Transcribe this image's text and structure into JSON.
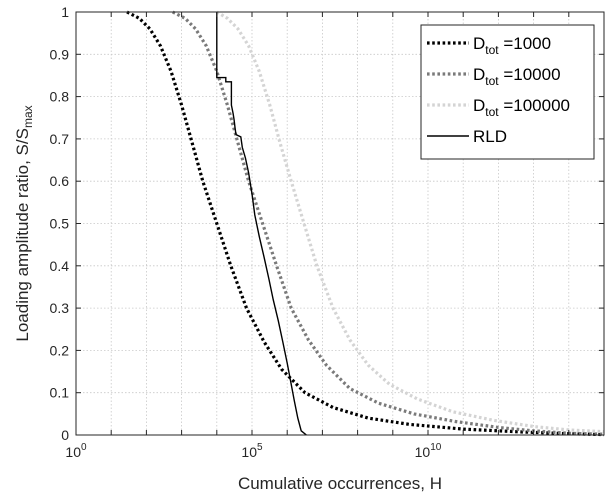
{
  "chart_data": {
    "type": "line",
    "xlabel": "Cumulative occurrences, H",
    "ylabel": {
      "main": "Loading amplitude ratio, S/S",
      "sub": "max"
    },
    "xscale": "log",
    "xlim": [
      1,
      1000000000000000
    ],
    "ylim": [
      0,
      1
    ],
    "grid": true,
    "legend_position": "top-right",
    "x_ticks": [
      {
        "value": 1,
        "base": "10",
        "exp": "0"
      },
      {
        "value": 100000,
        "base": "10",
        "exp": "5"
      },
      {
        "value": 10000000000,
        "base": "10",
        "exp": "10"
      }
    ],
    "y_ticks": [
      "0",
      "0.1",
      "0.2",
      "0.3",
      "0.4",
      "0.5",
      "0.6",
      "0.7",
      "0.8",
      "0.9",
      "1"
    ],
    "series": [
      {
        "name": {
          "main": "D",
          "sub": "tot",
          "suffix": " =1000"
        },
        "style": "dotted",
        "color": "#000000",
        "points": [
          [
            28.2,
            1.0
          ],
          [
            63.0,
            0.985
          ],
          [
            126.0,
            0.96
          ],
          [
            250.0,
            0.92
          ],
          [
            500.0,
            0.86
          ],
          [
            1000.0,
            0.78
          ],
          [
            2000.0,
            0.69
          ],
          [
            4000.0,
            0.6
          ],
          [
            10000.0,
            0.5
          ],
          [
            25000.0,
            0.4
          ],
          [
            70000.0,
            0.3
          ],
          [
            220000.0,
            0.22
          ],
          [
            700000.0,
            0.155
          ],
          [
            3200000.0,
            0.1
          ],
          [
            20000000.0,
            0.065
          ],
          [
            200000000.0,
            0.04
          ],
          [
            3000000000.0,
            0.025
          ],
          [
            100000000000.0,
            0.014
          ],
          [
            5000000000000.0,
            0.007
          ],
          [
            100000000000000.0,
            0.003
          ],
          [
            1000000000000000.0,
            0.001
          ]
        ]
      },
      {
        "name": {
          "main": "D",
          "sub": "tot",
          "suffix": " =10000"
        },
        "style": "dotted",
        "color": "#7a7a7a",
        "points": [
          [
            560.0,
            1.0
          ],
          [
            1260.0,
            0.985
          ],
          [
            2500.0,
            0.96
          ],
          [
            5000.0,
            0.92
          ],
          [
            10000.0,
            0.86
          ],
          [
            20000.0,
            0.78
          ],
          [
            40000.0,
            0.69
          ],
          [
            80000.0,
            0.6
          ],
          [
            200000.0,
            0.5
          ],
          [
            500000.0,
            0.4
          ],
          [
            1300000.0,
            0.3
          ],
          [
            4000000.0,
            0.225
          ],
          [
            13000000.0,
            0.165
          ],
          [
            60000000.0,
            0.11
          ],
          [
            400000000.0,
            0.075
          ],
          [
            4000000000.0,
            0.05
          ],
          [
            60000000000.0,
            0.032
          ],
          [
            1000000000000.0,
            0.018
          ],
          [
            10000000000000.0,
            0.01
          ],
          [
            100000000000000.0,
            0.004
          ],
          [
            1000000000000000.0,
            0.002
          ]
        ]
      },
      {
        "name": {
          "main": "D",
          "sub": "tot",
          "suffix": " =100000"
        },
        "style": "dotted",
        "color": "#d4d4d4",
        "points": [
          [
            10000.0,
            1.0
          ],
          [
            20000.0,
            0.985
          ],
          [
            40000.0,
            0.96
          ],
          [
            80000.0,
            0.92
          ],
          [
            160000.0,
            0.86
          ],
          [
            320000.0,
            0.78
          ],
          [
            630000.0,
            0.69
          ],
          [
            1300000.0,
            0.6
          ],
          [
            3000000.0,
            0.5
          ],
          [
            7000000.0,
            0.4
          ],
          [
            20000000.0,
            0.3
          ],
          [
            60000000.0,
            0.225
          ],
          [
            200000000.0,
            0.165
          ],
          [
            800000000.0,
            0.12
          ],
          [
            5000000000.0,
            0.085
          ],
          [
            50000000000.0,
            0.055
          ],
          [
            700000000000.0,
            0.035
          ],
          [
            10000000000000.0,
            0.02
          ],
          [
            100000000000000.0,
            0.012
          ],
          [
            1000000000000000.0,
            0.008
          ]
        ]
      },
      {
        "name": {
          "main": "RLD",
          "sub": "",
          "suffix": ""
        },
        "style": "solid",
        "color": "#000000",
        "points": [
          [
            10000.0,
            1.0
          ],
          [
            10000.0,
            0.845
          ],
          [
            18000.0,
            0.845
          ],
          [
            18000.0,
            0.835
          ],
          [
            26000.0,
            0.835
          ],
          [
            26000.0,
            0.78
          ],
          [
            29000.0,
            0.76
          ],
          [
            31000.0,
            0.745
          ],
          [
            33000.0,
            0.725
          ],
          [
            35000.0,
            0.71
          ],
          [
            48000.0,
            0.705
          ],
          [
            53000.0,
            0.68
          ],
          [
            65000.0,
            0.655
          ],
          [
            80000.0,
            0.62
          ],
          [
            100000.0,
            0.57
          ],
          [
            120000.0,
            0.52
          ],
          [
            160000.0,
            0.47
          ],
          [
            220000.0,
            0.42
          ],
          [
            300000.0,
            0.37
          ],
          [
            400000.0,
            0.32
          ],
          [
            560000.0,
            0.27
          ],
          [
            750000.0,
            0.22
          ],
          [
            1000000.0,
            0.17
          ],
          [
            1300000.0,
            0.12
          ],
          [
            1600000.0,
            0.08
          ],
          [
            2000000.0,
            0.04
          ],
          [
            2500000.0,
            0.01
          ],
          [
            3500000.0,
            0.0
          ]
        ]
      }
    ]
  }
}
